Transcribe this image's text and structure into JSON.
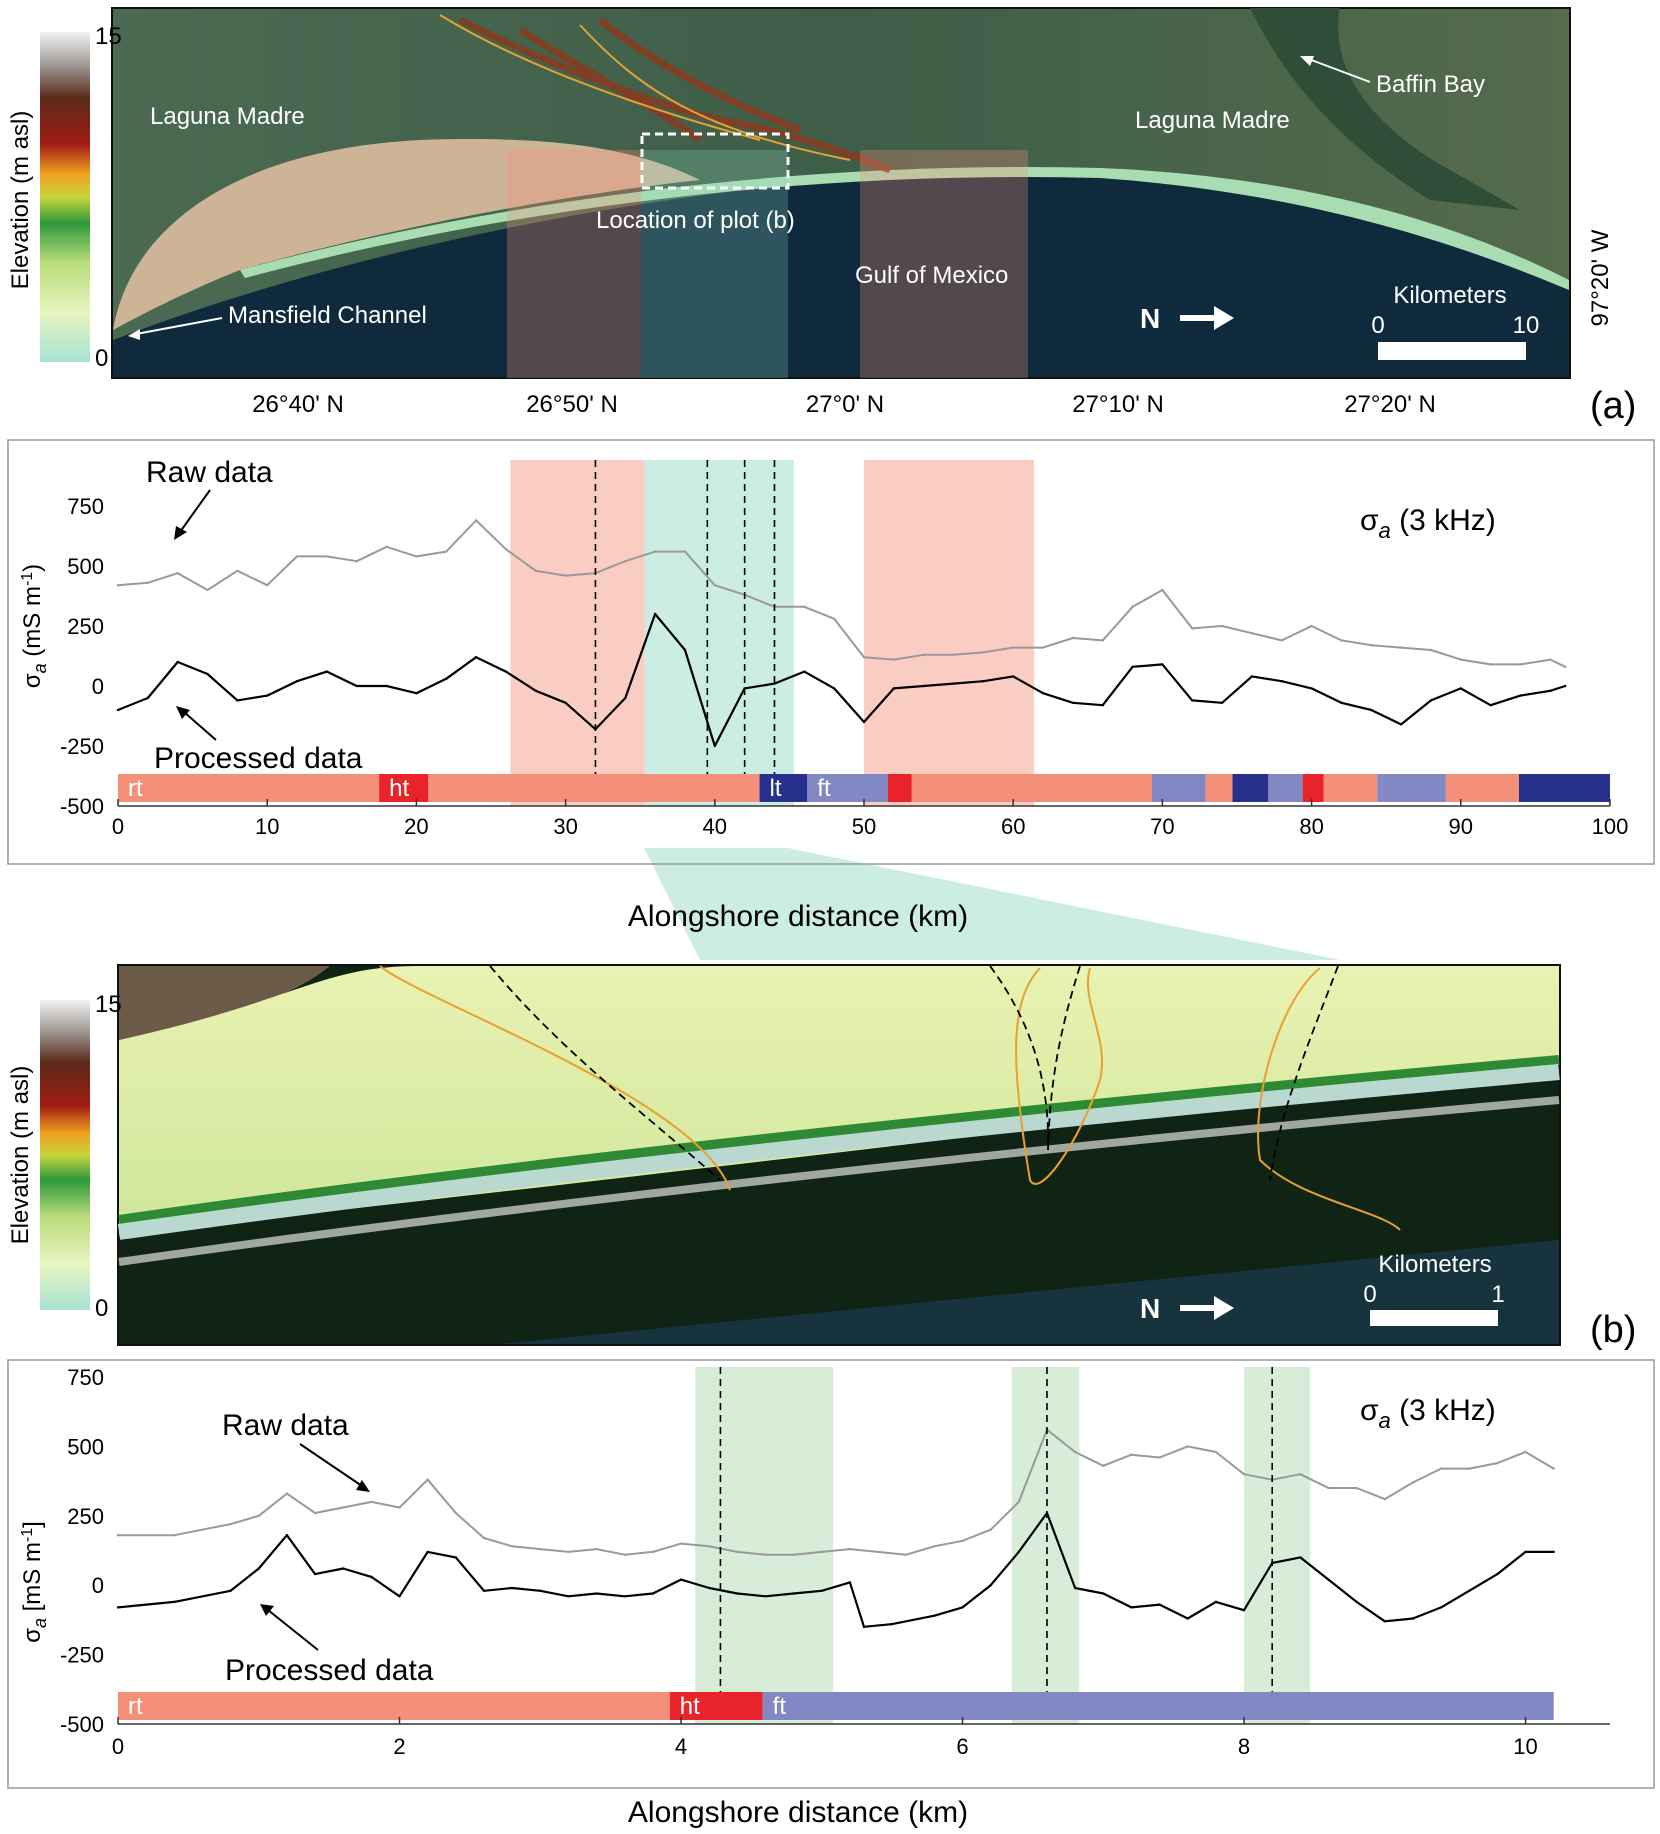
{
  "panel_a": {
    "tag": "(a)",
    "map": {
      "colorbar": {
        "label": "Elevation (m asl)",
        "max": "15",
        "min": "0"
      },
      "labels": {
        "laguna_left": "Laguna Madre",
        "laguna_right": "Laguna Madre",
        "baffin": "Baffin Bay",
        "mansfield": "Mansfield Channel",
        "gulf": "Gulf of Mexico",
        "location": "Location of plot (b)",
        "north": "N",
        "km_title": "Kilometers",
        "km_0": "0",
        "km_10": "10",
        "longitude": "97°20' W"
      },
      "lat_ticks": [
        "26°40' N",
        "26°50' N",
        "27°0' N",
        "27°10' N",
        "27°20' N"
      ]
    },
    "raw_label": "Raw data",
    "processed_label": "Processed data",
    "series_label_main": "σ",
    "series_label_sub": "a",
    "series_label_rest": " (3 kHz)",
    "ylabel_main": "σ",
    "ylabel_sub": "a",
    "ylabel_rest": " (mS m",
    "ylabel_sup": "-1",
    "ylabel_end": ")"
  },
  "panel_b": {
    "tag": "(b)",
    "map": {
      "colorbar": {
        "label": "Elevation (m asl)",
        "max": "15",
        "min": "0"
      },
      "labels": {
        "north": "N",
        "km_title": "Kilometers",
        "km_0": "0",
        "km_1": "1"
      }
    },
    "raw_label": "Raw data",
    "processed_label": "Processed data",
    "series_label_main": "σ",
    "series_label_sub": "a",
    "series_label_rest": " (3 kHz)",
    "ylabel_main": "σ",
    "ylabel_sub": "a",
    "ylabel_rest": " [mS m",
    "ylabel_sup": "-1",
    "ylabel_end": "]"
  },
  "chart_data": [
    {
      "type": "line",
      "xlabel": "Alongshore distance (km)",
      "xlim": [
        0,
        100
      ],
      "ylim": [
        -500,
        900
      ],
      "xticks": [
        0,
        10,
        20,
        30,
        40,
        50,
        60,
        70,
        80,
        90,
        100
      ],
      "yticks": [
        -500,
        -250,
        0,
        250,
        500,
        750
      ],
      "series": [
        {
          "name": "Raw data",
          "color": "#999999",
          "x": [
            0,
            2,
            4,
            6,
            8,
            10,
            12,
            14,
            16,
            18,
            20,
            22,
            24,
            26,
            28,
            30,
            32,
            34,
            36,
            38,
            40,
            42,
            44,
            46,
            48,
            50,
            52,
            54,
            56,
            58,
            60,
            62,
            64,
            66,
            68,
            70,
            72,
            74,
            76,
            78,
            80,
            82,
            84,
            86,
            88,
            90,
            92,
            94,
            96,
            97
          ],
          "y": [
            420,
            430,
            470,
            400,
            480,
            420,
            540,
            540,
            520,
            580,
            540,
            560,
            690,
            570,
            480,
            460,
            470,
            520,
            560,
            560,
            420,
            380,
            330,
            330,
            280,
            120,
            110,
            130,
            130,
            140,
            160,
            160,
            200,
            190,
            330,
            400,
            240,
            250,
            220,
            190,
            250,
            190,
            170,
            160,
            150,
            110,
            90,
            90,
            110,
            80
          ]
        },
        {
          "name": "Processed data",
          "color": "#000000",
          "x": [
            0,
            2,
            4,
            6,
            8,
            10,
            12,
            14,
            16,
            18,
            20,
            22,
            24,
            26,
            28,
            30,
            32,
            34,
            36,
            38,
            40,
            42,
            44,
            46,
            48,
            50,
            52,
            54,
            56,
            58,
            60,
            62,
            64,
            66,
            68,
            70,
            72,
            74,
            76,
            78,
            80,
            82,
            84,
            86,
            88,
            90,
            92,
            94,
            96,
            97
          ],
          "y": [
            -100,
            -50,
            100,
            50,
            -60,
            -40,
            20,
            60,
            0,
            0,
            -30,
            30,
            120,
            60,
            -20,
            -70,
            -180,
            -50,
            300,
            150,
            -250,
            -10,
            10,
            60,
            -10,
            -150,
            -10,
            0,
            10,
            20,
            40,
            -30,
            -70,
            -80,
            80,
            90,
            -60,
            -70,
            40,
            20,
            -10,
            -70,
            -100,
            -160,
            -60,
            -10,
            -80,
            -40,
            -20,
            0
          ]
        }
      ],
      "segments": [
        {
          "label": "rt",
          "start": 0,
          "end": 17.5,
          "color": "#f4907a"
        },
        {
          "label": "ht",
          "start": 17.5,
          "end": 20.8,
          "color": "#e8232a"
        },
        {
          "label": "",
          "start": 20.8,
          "end": 43.0,
          "color": "#f4907a"
        },
        {
          "label": "lt",
          "start": 43.0,
          "end": 46.2,
          "color": "#27318d"
        },
        {
          "label": "ft",
          "start": 46.2,
          "end": 51.6,
          "color": "#8288c4"
        },
        {
          "label": "",
          "start": 51.6,
          "end": 53.2,
          "color": "#e8232a"
        },
        {
          "label": "",
          "start": 53.2,
          "end": 69.3,
          "color": "#f4907a"
        },
        {
          "label": "",
          "start": 69.3,
          "end": 72.9,
          "color": "#8288c4"
        },
        {
          "label": "",
          "start": 72.9,
          "end": 74.7,
          "color": "#f4907a"
        },
        {
          "label": "",
          "start": 74.7,
          "end": 77.1,
          "color": "#27318d"
        },
        {
          "label": "",
          "start": 77.1,
          "end": 79.4,
          "color": "#8288c4"
        },
        {
          "label": "",
          "start": 79.4,
          "end": 80.8,
          "color": "#e8232a"
        },
        {
          "label": "",
          "start": 80.8,
          "end": 84.4,
          "color": "#f4907a"
        },
        {
          "label": "",
          "start": 84.4,
          "end": 89.0,
          "color": "#8288c4"
        },
        {
          "label": "",
          "start": 89.0,
          "end": 93.9,
          "color": "#f4907a"
        },
        {
          "label": "",
          "start": 93.9,
          "end": 100,
          "color": "#27318d"
        }
      ],
      "shaded": [
        {
          "start": 26.3,
          "end": 35.3,
          "color": "#f4907a"
        },
        {
          "start": 35.3,
          "end": 45.3,
          "color": "#8fd8c0"
        },
        {
          "start": 50.0,
          "end": 61.4,
          "color": "#f4907a"
        }
      ],
      "dashed_x": [
        32.0,
        39.5,
        42.0,
        44.0
      ]
    },
    {
      "type": "line",
      "xlabel": "Alongshore distance (km)",
      "xlim": [
        0,
        10.6
      ],
      "ylim": [
        -500,
        750
      ],
      "xticks": [
        0,
        2,
        4,
        6,
        8,
        10
      ],
      "yticks": [
        -500,
        -250,
        0,
        250,
        500,
        750
      ],
      "series": [
        {
          "name": "Raw data",
          "color": "#999999",
          "x": [
            0,
            0.4,
            0.8,
            1.0,
            1.2,
            1.4,
            1.6,
            1.8,
            2.0,
            2.2,
            2.4,
            2.6,
            2.8,
            3.0,
            3.2,
            3.4,
            3.6,
            3.8,
            4.0,
            4.2,
            4.4,
            4.6,
            4.8,
            5.0,
            5.2,
            5.4,
            5.6,
            5.8,
            6.0,
            6.2,
            6.4,
            6.6,
            6.8,
            7.0,
            7.2,
            7.4,
            7.6,
            7.8,
            8.0,
            8.2,
            8.4,
            8.6,
            8.8,
            9.0,
            9.2,
            9.4,
            9.6,
            9.8,
            10.0,
            10.2
          ],
          "y": [
            180,
            180,
            220,
            250,
            330,
            260,
            280,
            300,
            280,
            380,
            260,
            170,
            140,
            130,
            120,
            130,
            110,
            120,
            150,
            140,
            120,
            110,
            110,
            120,
            130,
            120,
            110,
            140,
            160,
            200,
            300,
            560,
            480,
            430,
            470,
            460,
            500,
            480,
            400,
            380,
            400,
            350,
            350,
            310,
            370,
            420,
            420,
            440,
            480,
            420
          ]
        },
        {
          "name": "Processed data",
          "color": "#000000",
          "x": [
            0,
            0.4,
            0.8,
            1.0,
            1.2,
            1.4,
            1.6,
            1.8,
            2.0,
            2.2,
            2.4,
            2.6,
            2.8,
            3.0,
            3.2,
            3.4,
            3.6,
            3.8,
            4.0,
            4.2,
            4.4,
            4.6,
            4.8,
            5.0,
            5.2,
            5.3,
            5.5,
            5.8,
            6.0,
            6.2,
            6.4,
            6.6,
            6.8,
            7.0,
            7.2,
            7.4,
            7.6,
            7.8,
            8.0,
            8.2,
            8.4,
            8.6,
            8.8,
            9.0,
            9.2,
            9.4,
            9.6,
            9.8,
            10.0,
            10.2
          ],
          "y": [
            -80,
            -60,
            -20,
            60,
            180,
            40,
            60,
            30,
            -40,
            120,
            100,
            -20,
            -10,
            -20,
            -40,
            -30,
            -40,
            -30,
            20,
            -10,
            -30,
            -40,
            -30,
            -20,
            10,
            -150,
            -140,
            -110,
            -80,
            0,
            120,
            260,
            -10,
            -30,
            -80,
            -70,
            -120,
            -60,
            -90,
            80,
            100,
            20,
            -60,
            -130,
            -120,
            -80,
            -20,
            40,
            120,
            120
          ]
        }
      ],
      "segments": [
        {
          "label": "rt",
          "start": 0,
          "end": 3.92,
          "color": "#f4907a"
        },
        {
          "label": "ht",
          "start": 3.92,
          "end": 4.58,
          "color": "#e8232a"
        },
        {
          "label": "ft",
          "start": 4.58,
          "end": 10.2,
          "color": "#8288c4"
        }
      ],
      "shaded": [
        {
          "start": 4.1,
          "end": 5.08,
          "color": "#a8d8a8"
        },
        {
          "start": 6.35,
          "end": 6.83,
          "color": "#a8d8a8"
        },
        {
          "start": 8.0,
          "end": 8.47,
          "color": "#a8d8a8"
        }
      ],
      "dashed_x": [
        4.28,
        6.6,
        8.2
      ]
    }
  ]
}
